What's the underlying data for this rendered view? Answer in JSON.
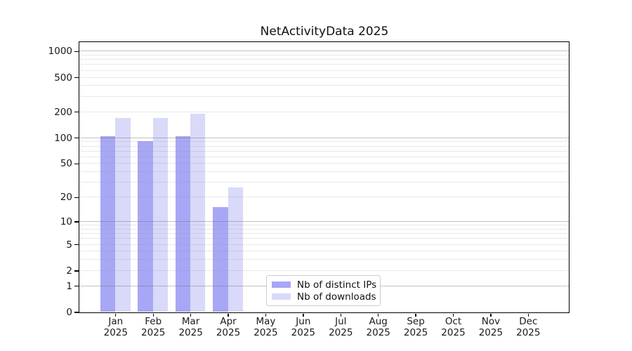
{
  "figure": {
    "title": "NetActivityData 2025"
  },
  "chart_data": {
    "type": "bar",
    "title": "NetActivityData 2025",
    "categories": [
      "Jan",
      "Feb",
      "Mar",
      "Apr",
      "May",
      "Jun",
      "Jul",
      "Aug",
      "Sep",
      "Oct",
      "Nov",
      "Dec"
    ],
    "category_year_line": "2025",
    "series": [
      {
        "name": "Nb of distinct IPs",
        "color": "#a7a7f5",
        "values": [
          104,
          92,
          104,
          15,
          0,
          0,
          0,
          0,
          0,
          0,
          0,
          0
        ]
      },
      {
        "name": "Nb of downloads",
        "color": "#d9d9f9",
        "values": [
          170,
          170,
          190,
          26,
          0,
          0,
          0,
          0,
          0,
          0,
          0,
          0
        ]
      }
    ],
    "xlabel": "",
    "ylabel": "",
    "yscale": "log1p",
    "ylim": [
      0,
      1280
    ],
    "yticks": [
      0,
      1,
      2,
      5,
      10,
      20,
      50,
      100,
      200,
      500,
      1000
    ],
    "grid": "both",
    "grid_major_color": "#bdbdbd",
    "grid_minor_color": "#e9e9e9",
    "legend_position": "lower-center",
    "legend_entries": [
      "Nb of distinct IPs",
      "Nb of downloads"
    ]
  }
}
